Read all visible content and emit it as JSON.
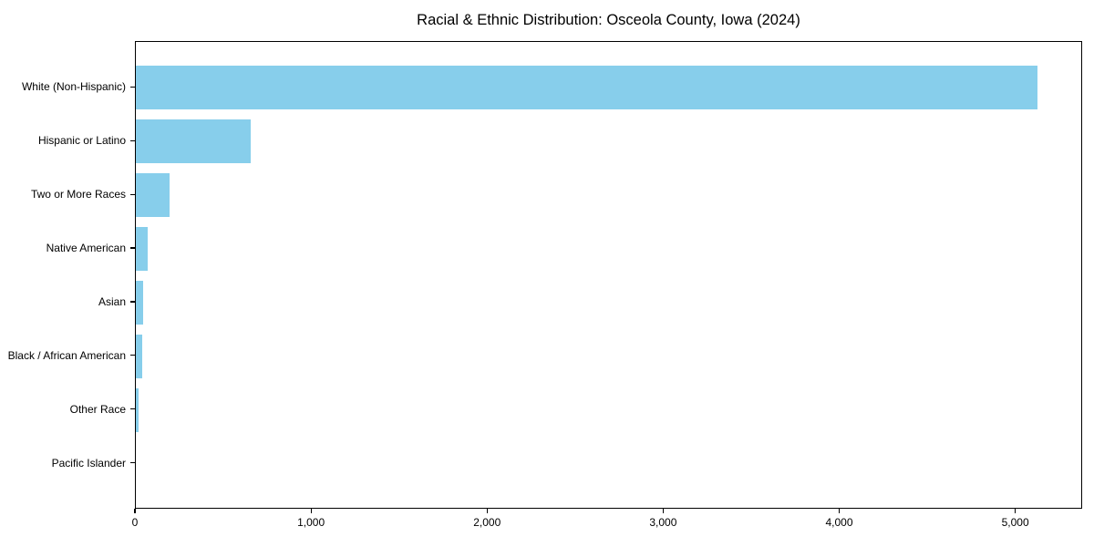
{
  "colors": {
    "background": "#ffffff",
    "bar": "#87CEEB",
    "axis": "#000000",
    "text": "#000000"
  },
  "chart_data": {
    "type": "bar",
    "orientation": "horizontal",
    "title": "Racial & Ethnic Distribution: Osceola County, Iowa (2024)",
    "categories": [
      "White (Non-Hispanic)",
      "Hispanic or Latino",
      "Two or More Races",
      "Native American",
      "Asian",
      "Black / African American",
      "Other Race",
      "Pacific Islander"
    ],
    "values": [
      5120,
      650,
      190,
      67,
      40,
      35,
      15,
      0
    ],
    "xlabel": "",
    "ylabel": "",
    "xlim": [
      0,
      5380
    ],
    "xticks": [
      0,
      1000,
      2000,
      3000,
      4000,
      5000
    ],
    "xtick_labels": [
      "0",
      "1,000",
      "2,000",
      "3,000",
      "4,000",
      "5,000"
    ],
    "bar_color": "#87CEEB",
    "grid": false,
    "legend": null
  }
}
